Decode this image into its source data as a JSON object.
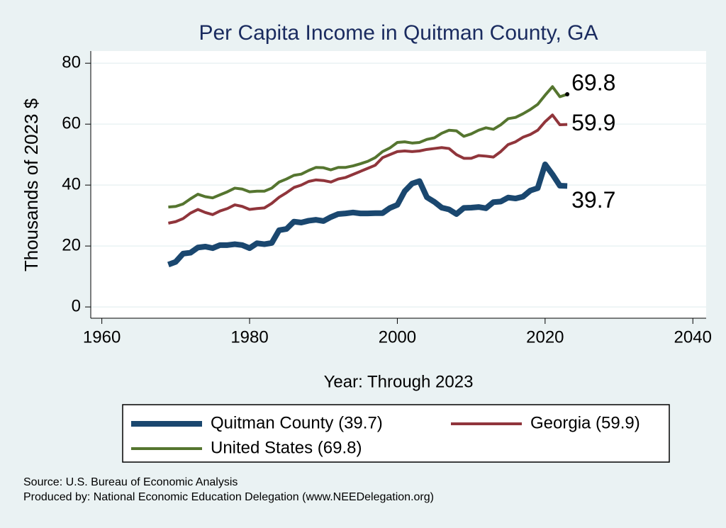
{
  "chart_data": {
    "type": "line",
    "title": "Per Capita Income in Quitman County, GA",
    "x_label": "Year: Through 2023",
    "y_label": "Thousands of 2023 $",
    "x": [
      1969,
      1970,
      1971,
      1972,
      1973,
      1974,
      1975,
      1976,
      1977,
      1978,
      1979,
      1980,
      1981,
      1982,
      1983,
      1984,
      1985,
      1986,
      1987,
      1988,
      1989,
      1990,
      1991,
      1992,
      1993,
      1994,
      1995,
      1996,
      1997,
      1998,
      1999,
      2000,
      2001,
      2002,
      2003,
      2004,
      2005,
      2006,
      2007,
      2008,
      2009,
      2010,
      2011,
      2012,
      2013,
      2014,
      2015,
      2016,
      2017,
      2018,
      2019,
      2020,
      2021,
      2022,
      2023
    ],
    "series": [
      {
        "name": "Quitman County (39.7)",
        "color": "#1a476f",
        "width": 8,
        "values": [
          13.9,
          14.8,
          17.5,
          17.8,
          19.5,
          19.8,
          19.3,
          20.3,
          20.3,
          20.6,
          20.3,
          19.3,
          20.9,
          20.6,
          21,
          25.2,
          25.6,
          28,
          27.7,
          28.3,
          28.6,
          28.2,
          29.5,
          30.5,
          30.7,
          31,
          30.7,
          30.7,
          30.8,
          30.8,
          32.5,
          33.5,
          38,
          40.5,
          41.3,
          36,
          34.5,
          32.6,
          32,
          30.5,
          32.5,
          32.6,
          32.8,
          32.4,
          34.4,
          34.6,
          35.9,
          35.6,
          36.2,
          38.2,
          39,
          46.8,
          43.5,
          39.8,
          39.7
        ]
      },
      {
        "name": "Georgia (59.9)",
        "color": "#90353b",
        "width": 4,
        "values": [
          27.5,
          28,
          29,
          30.8,
          32,
          31,
          30.3,
          31.5,
          32.3,
          33.5,
          33,
          32,
          32.3,
          32.5,
          34,
          36,
          37.5,
          39.2,
          40,
          41.2,
          41.7,
          41.5,
          41,
          42,
          42.5,
          43.5,
          44.5,
          45.5,
          46.5,
          49,
          50,
          51,
          51.2,
          51,
          51.2,
          51.7,
          52,
          52.3,
          52,
          50,
          48.8,
          48.8,
          49.7,
          49.5,
          49.2,
          51,
          53.3,
          54.2,
          55.7,
          56.6,
          58,
          60.8,
          63,
          59.8,
          59.9
        ]
      },
      {
        "name": "United States (69.8)",
        "color": "#55752f",
        "width": 4,
        "values": [
          32.8,
          33,
          33.8,
          35.5,
          37,
          36.2,
          35.8,
          36.8,
          37.8,
          39,
          38.7,
          37.8,
          38,
          38,
          39,
          41,
          42,
          43.2,
          43.6,
          44.8,
          45.8,
          45.7,
          45,
          45.8,
          45.8,
          46.3,
          47,
          47.8,
          49,
          51,
          52.2,
          54,
          54.2,
          53.8,
          54,
          55,
          55.5,
          57,
          58,
          57.8,
          56,
          56.8,
          58,
          58.8,
          58.3,
          59.8,
          61.8,
          62.2,
          63.4,
          64.8,
          66.5,
          69.5,
          72.3,
          69,
          69.8
        ]
      }
    ],
    "xlim": [
      1958.5,
      2041.8
    ],
    "xticks": [
      1960,
      1980,
      2000,
      2020,
      2040
    ],
    "ylim": [
      -3.7,
      84
    ],
    "yticks": [
      0,
      20,
      40,
      60,
      80
    ],
    "grid": true,
    "notes": [
      "Source: U.S. Bureau of Economic Analysis",
      "Produced by: National Economic Education Delegation (www.NEEDelegation.org)"
    ]
  }
}
